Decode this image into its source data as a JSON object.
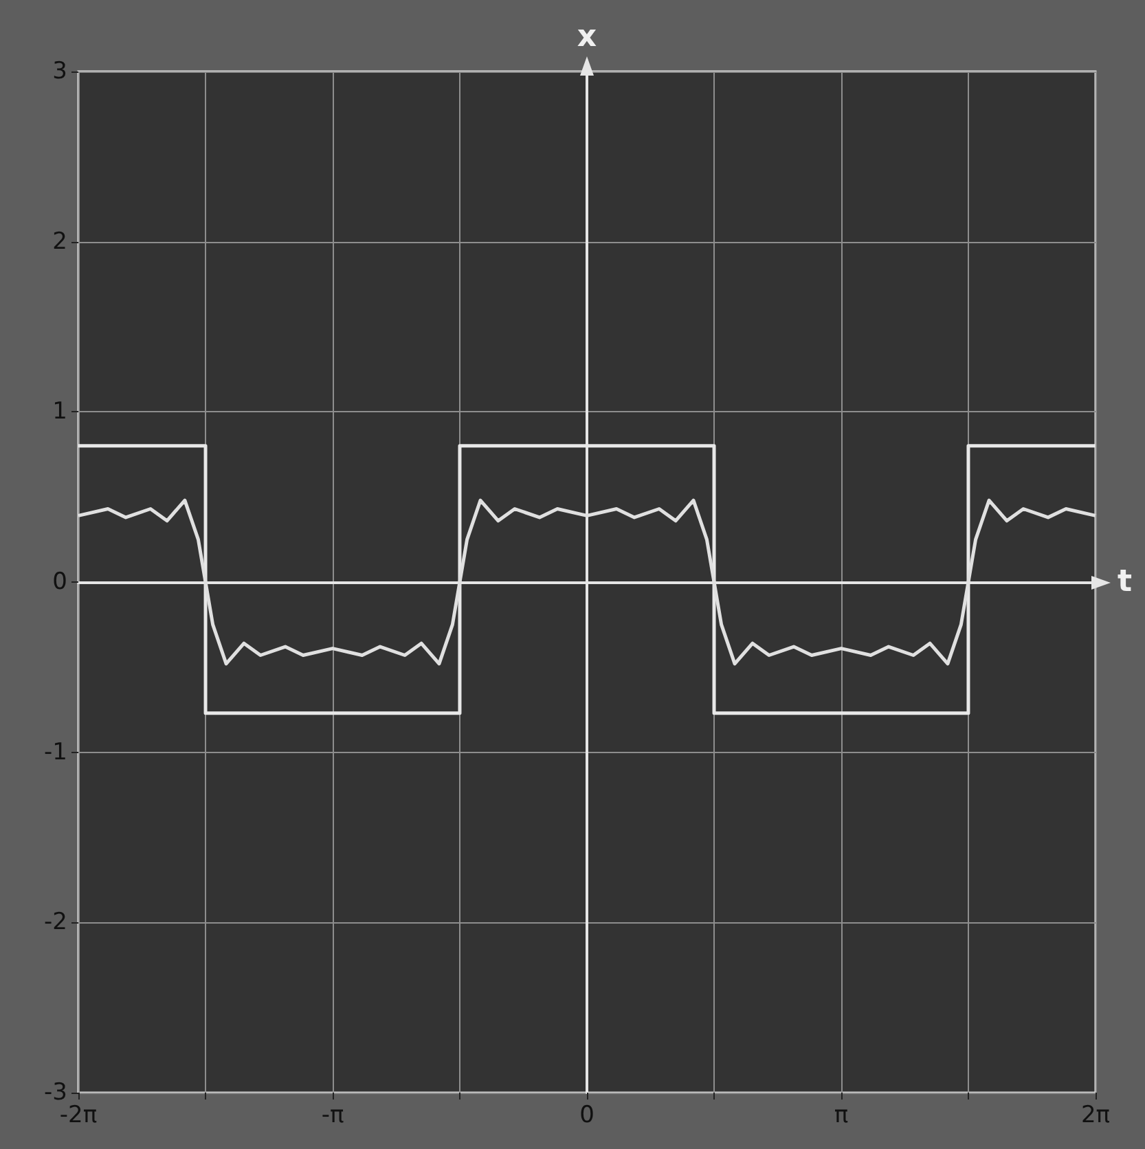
{
  "chart_data": {
    "type": "line",
    "xlabel": "t",
    "ylabel": "x",
    "xlim": [
      -6.2832,
      6.2832
    ],
    "xticks": [
      {
        "value": -6.2832,
        "label": "-2π"
      },
      {
        "value": -4.7124,
        "label": null
      },
      {
        "value": -3.1416,
        "label": "-π"
      },
      {
        "value": -1.5708,
        "label": null
      },
      0,
      {
        "value": 1.5708,
        "label": null
      },
      {
        "value": 3.1416,
        "label": "π"
      },
      {
        "value": 4.7124,
        "label": null
      },
      {
        "value": 6.2832,
        "label": "2π"
      }
    ],
    "ylim": [
      -3,
      3
    ],
    "yticks": [
      -3,
      -2,
      -1,
      0,
      1,
      2,
      3
    ],
    "grid": true,
    "marker": "none",
    "line_style": "solid",
    "series": [
      {
        "color": "#e8e8e8",
        "x": [
          -6.283,
          -4.712,
          -4.712,
          -1.571,
          -1.571,
          1.571,
          1.571,
          4.712,
          4.712,
          6.283
        ],
        "values": [
          0.8,
          0.8,
          -0.77,
          -0.77,
          0.8,
          0.8,
          -0.77,
          -0.77,
          0.8,
          0.8
        ]
      },
      {
        "color": "#e0e0e0",
        "x": [
          -6.283,
          -5.918,
          -5.697,
          -5.392,
          -5.188,
          -4.968,
          -4.802,
          -4.712,
          -4.622,
          -4.457,
          -4.237,
          -4.033,
          -3.727,
          -3.506,
          -3.142,
          -2.777,
          -2.555,
          -2.25,
          -2.046,
          -1.826,
          -1.661,
          -1.571,
          -1.481,
          -1.316,
          -1.096,
          -0.892,
          -0.586,
          -0.365,
          0,
          0.365,
          0.586,
          0.892,
          1.096,
          1.316,
          1.481,
          1.571,
          1.661,
          1.826,
          2.046,
          2.25,
          2.555,
          2.777,
          3.142,
          3.506,
          3.727,
          4.033,
          4.237,
          4.457,
          4.622,
          4.712,
          4.802,
          4.968,
          5.188,
          5.392,
          5.697,
          5.918,
          6.283
        ],
        "values": [
          0.39,
          0.43,
          0.38,
          0.43,
          0.36,
          0.48,
          0.25,
          0,
          -0.25,
          -0.48,
          -0.36,
          -0.43,
          -0.38,
          -0.43,
          -0.39,
          -0.43,
          -0.38,
          -0.43,
          -0.36,
          -0.48,
          -0.25,
          0,
          0.25,
          0.48,
          0.36,
          0.43,
          0.38,
          0.43,
          0.39,
          0.43,
          0.38,
          0.43,
          0.36,
          0.48,
          0.25,
          0,
          -0.25,
          -0.48,
          -0.36,
          -0.43,
          -0.38,
          -0.43,
          -0.39,
          -0.43,
          -0.38,
          -0.43,
          -0.36,
          -0.48,
          -0.25,
          0,
          0.25,
          0.48,
          0.36,
          0.43,
          0.38,
          0.43,
          0.39
        ]
      }
    ]
  }
}
